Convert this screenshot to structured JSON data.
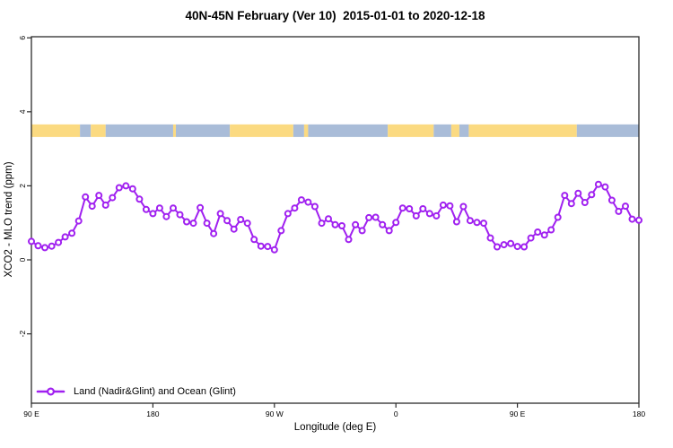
{
  "chart_data": {
    "type": "line",
    "title": "40N-45N February (Ver 10)  2015-01-01 to 2020-12-18",
    "xlabel": "Longitude (deg E)",
    "ylabel": "XCO2 - MLO trend (ppm)",
    "x_span_deg": 450,
    "x_axis_note": "x axis runs 90E eastward through 180, 90W, 0, 90E to 180 (450 degrees total)",
    "xticks": [
      {
        "pos": 0,
        "label": "90 E"
      },
      {
        "pos": 90,
        "label": "180"
      },
      {
        "pos": 180,
        "label": "90 W"
      },
      {
        "pos": 270,
        "label": "0"
      },
      {
        "pos": 360,
        "label": "90 E"
      },
      {
        "pos": 450,
        "label": "180"
      }
    ],
    "yticks": [
      {
        "value": 6,
        "label": "6"
      },
      {
        "value": 4,
        "label": "4"
      },
      {
        "value": 2,
        "label": "2"
      },
      {
        "value": 0,
        "label": "0"
      },
      {
        "value": -2,
        "label": "-2"
      }
    ],
    "ylim": [
      -3.9,
      6.05
    ],
    "grid": false,
    "legend_position": "bottom-left-inside",
    "legend": {
      "label": "Land (Nadir&Glint) and Ocean (Glint)"
    },
    "series": [
      {
        "name": "Land (Nadir&Glint) and Ocean (Glint)",
        "color": "#A020F0",
        "marker": "open-circle",
        "step_deg": 5,
        "values": [
          0.5,
          0.38,
          0.33,
          0.37,
          0.47,
          0.62,
          0.72,
          1.05,
          1.7,
          1.45,
          1.74,
          1.48,
          1.68,
          1.95,
          2.0,
          1.92,
          1.64,
          1.36,
          1.25,
          1.4,
          1.17,
          1.4,
          1.22,
          1.03,
          0.99,
          1.41,
          0.99,
          0.71,
          1.25,
          1.06,
          0.83,
          1.09,
          0.99,
          0.55,
          0.37,
          0.36,
          0.27,
          0.79,
          1.25,
          1.4,
          1.62,
          1.56,
          1.44,
          0.99,
          1.11,
          0.95,
          0.92,
          0.55,
          0.95,
          0.79,
          1.14,
          1.15,
          0.95,
          0.79,
          1.01,
          1.4,
          1.38,
          1.19,
          1.38,
          1.25,
          1.19,
          1.48,
          1.46,
          1.03,
          1.44,
          1.06,
          1.01,
          0.99,
          0.59,
          0.35,
          0.41,
          0.44,
          0.36,
          0.35,
          0.59,
          0.75,
          0.67,
          0.81,
          1.15,
          1.74,
          1.52,
          1.8,
          1.55,
          1.76,
          2.04,
          1.97,
          1.61,
          1.31,
          1.45,
          1.1,
          1.07
        ]
      }
    ],
    "map_band": {
      "description": "land/ocean strip for 40N-45N plotted across the longitude axis",
      "top_value": 3.66,
      "bottom_value": 3.32,
      "land_color": "#FBDA81",
      "ocean_color": "#A9BCD8",
      "segments": [
        {
          "from": 0,
          "to": 36,
          "type": "land"
        },
        {
          "from": 36,
          "to": 44,
          "type": "ocean"
        },
        {
          "from": 44,
          "to": 55,
          "type": "land"
        },
        {
          "from": 55,
          "to": 105,
          "type": "ocean"
        },
        {
          "from": 105,
          "to": 107,
          "type": "land"
        },
        {
          "from": 107,
          "to": 147,
          "type": "ocean"
        },
        {
          "from": 147,
          "to": 194,
          "type": "land"
        },
        {
          "from": 194,
          "to": 202,
          "type": "ocean"
        },
        {
          "from": 202,
          "to": 205,
          "type": "land"
        },
        {
          "from": 205,
          "to": 264,
          "type": "ocean"
        },
        {
          "from": 264,
          "to": 298,
          "type": "land"
        },
        {
          "from": 298,
          "to": 311,
          "type": "ocean"
        },
        {
          "from": 311,
          "to": 317,
          "type": "land"
        },
        {
          "from": 317,
          "to": 324,
          "type": "ocean"
        },
        {
          "from": 324,
          "to": 404,
          "type": "land"
        },
        {
          "from": 404,
          "to": 450,
          "type": "ocean"
        }
      ]
    }
  }
}
